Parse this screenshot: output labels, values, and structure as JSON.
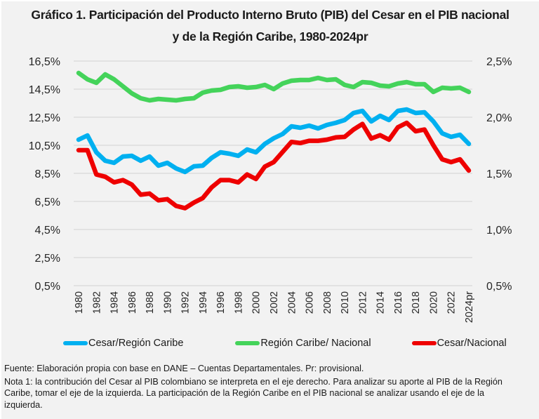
{
  "chart_data": {
    "type": "line",
    "title": "Gráfico 1. Participación del Producto Interno Bruto (PIB) del Cesar en el PIB nacional y de la Región Caribe, 1980-2024pr",
    "title_lines": [
      "Gráfico 1. Participación del Producto Interno Bruto (PIB) del Cesar en el PIB nacional",
      "y de la Región Caribe, 1980-2024pr"
    ],
    "xlabel": "",
    "ylabel_left": "",
    "ylabel_right": "",
    "x": [
      1980,
      1981,
      1982,
      1983,
      1984,
      1985,
      1986,
      1987,
      1988,
      1989,
      1990,
      1991,
      1992,
      1993,
      1994,
      1995,
      1996,
      1997,
      1998,
      1999,
      2000,
      2001,
      2002,
      2003,
      2004,
      2005,
      2006,
      2007,
      2008,
      2009,
      2010,
      2011,
      2012,
      2013,
      2014,
      2015,
      2016,
      2017,
      2018,
      2019,
      2020,
      2021,
      2022,
      2023,
      2024
    ],
    "x_tick_labels": [
      "1980",
      "1982",
      "1984",
      "1986",
      "1988",
      "1990",
      "1992",
      "1994",
      "1996",
      "1998",
      "2000",
      "2002",
      "2004",
      "2006",
      "2008",
      "2010",
      "2012",
      "2014",
      "2016",
      "2018",
      "2020",
      "2022",
      "2024pr"
    ],
    "y_left": {
      "range": [
        0.5,
        16.5
      ],
      "ticks": [
        0.5,
        2.5,
        4.5,
        6.5,
        8.5,
        10.5,
        12.5,
        14.5,
        16.5
      ],
      "tick_labels": [
        "0,5%",
        "2,5%",
        "4,5%",
        "6,5%",
        "8,5%",
        "10,5%",
        "12,5%",
        "14,5%",
        "16,5%"
      ]
    },
    "y_right": {
      "range": [
        0.5,
        2.5
      ],
      "ticks": [
        0.5,
        1.0,
        1.5,
        2.0,
        2.5
      ],
      "tick_labels": [
        "0,5%",
        "1,0%",
        "1,5%",
        "2,0%",
        "2,5%"
      ]
    },
    "grid": true,
    "legend_position": "bottom",
    "series": [
      {
        "name": "Cesar/Región Caribe",
        "axis": "left",
        "color": "#00b0f0",
        "values": [
          10.9,
          11.2,
          10.0,
          9.4,
          9.25,
          9.7,
          9.75,
          9.4,
          9.7,
          9.05,
          9.25,
          8.85,
          8.6,
          9.0,
          9.05,
          9.6,
          10.0,
          9.9,
          9.75,
          10.2,
          10.0,
          10.6,
          11.0,
          11.3,
          11.85,
          11.75,
          11.9,
          11.7,
          11.95,
          12.1,
          12.3,
          12.8,
          12.95,
          12.2,
          12.6,
          12.3,
          12.95,
          13.05,
          12.8,
          12.85,
          12.2,
          11.35,
          11.1,
          11.25,
          10.6
        ]
      },
      {
        "name": "Región Caribe/ Nacional",
        "axis": "left",
        "color": "#44d35a",
        "values": [
          15.65,
          15.2,
          14.95,
          15.55,
          15.2,
          14.7,
          14.2,
          13.85,
          13.7,
          13.8,
          13.75,
          13.7,
          13.8,
          13.85,
          14.25,
          14.4,
          14.45,
          14.65,
          14.7,
          14.6,
          14.65,
          14.8,
          14.5,
          14.9,
          15.1,
          15.15,
          15.15,
          15.3,
          15.15,
          15.2,
          14.8,
          14.65,
          15.0,
          14.95,
          14.75,
          14.7,
          14.9,
          15.0,
          14.85,
          14.85,
          14.3,
          14.6,
          14.55,
          14.6,
          14.3
        ]
      },
      {
        "name": "Cesar/Nacional",
        "axis": "right",
        "color": "#ee0000",
        "values": [
          1.706,
          1.706,
          1.49,
          1.47,
          1.42,
          1.44,
          1.4,
          1.31,
          1.32,
          1.26,
          1.27,
          1.21,
          1.19,
          1.24,
          1.28,
          1.375,
          1.44,
          1.44,
          1.42,
          1.49,
          1.45,
          1.56,
          1.6,
          1.69,
          1.78,
          1.77,
          1.79,
          1.79,
          1.8,
          1.82,
          1.825,
          1.89,
          1.94,
          1.81,
          1.84,
          1.8,
          1.91,
          1.95,
          1.875,
          1.89,
          1.75,
          1.625,
          1.6,
          1.625,
          1.525
        ]
      }
    ]
  },
  "legend": {
    "items": [
      {
        "label": "Cesar/Región Caribe",
        "color": "#00b0f0"
      },
      {
        "label": "Región Caribe/ Nacional",
        "color": "#44d35a"
      },
      {
        "label": "Cesar/Nacional",
        "color": "#ee0000"
      }
    ]
  },
  "footer": {
    "source": "Fuente: Elaboración propia con base en DANE – Cuentas Departamentales. Pr: provisional.",
    "note": "Nota 1: la contribución del Cesar al PIB colombiano se interpreta en el eje derecho. Para analizar su aporte al PIB de la Región Caribe, tomar el eje de la izquierda. La participación de la Región Caribe en el PIB nacional se analizar usando el eje de la izquierda."
  }
}
